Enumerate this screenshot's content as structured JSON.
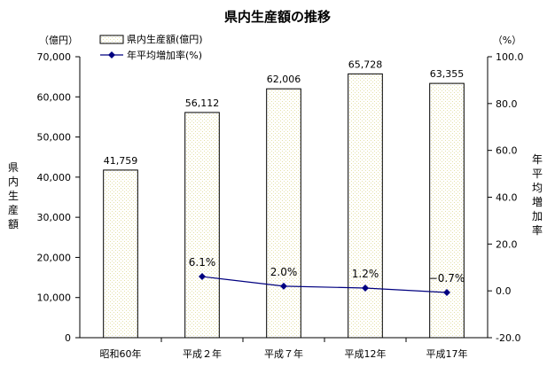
{
  "chart_data": {
    "type": "bar",
    "title": "県内生産額の推移",
    "categories": [
      "昭和60年",
      "平成２年",
      "平成７年",
      "平成12年",
      "平成17年"
    ],
    "series": [
      {
        "name": "県内生産額(億円)",
        "type": "bar",
        "axis": "left",
        "values": [
          41759,
          56112,
          62006,
          65728,
          63355
        ],
        "value_labels": [
          "41,759",
          "56,112",
          "62,006",
          "65,728",
          "63,355"
        ]
      },
      {
        "name": "年平均増加率(%)",
        "type": "line",
        "axis": "right",
        "values": [
          null,
          6.1,
          2.0,
          1.2,
          -0.7
        ],
        "value_labels": [
          "",
          "6.1%",
          "2.0%",
          "1.2%",
          "−0.7%"
        ]
      }
    ],
    "y_left": {
      "label": "県内生産額",
      "unit": "（億円）",
      "ylim": [
        0,
        70000
      ],
      "ticks": [
        0,
        10000,
        20000,
        30000,
        40000,
        50000,
        60000,
        70000
      ],
      "tick_labels": [
        "0",
        "10,000",
        "20,000",
        "30,000",
        "40,000",
        "50,000",
        "60,000",
        "70,000"
      ]
    },
    "y_right": {
      "label": "年平均増加率",
      "unit": "（%）",
      "ylim": [
        -20,
        100
      ],
      "ticks": [
        -20,
        0,
        20,
        40,
        60,
        80,
        100
      ],
      "tick_labels": [
        "-20.0",
        "0.0",
        "20.0",
        "40.0",
        "60.0",
        "80.0",
        "100.0"
      ]
    },
    "grid": false,
    "legend_position": "top-left",
    "colors": {
      "bar_fill": "#fdfbe8",
      "bar_stroke": "#000000",
      "line": "#000080"
    }
  }
}
